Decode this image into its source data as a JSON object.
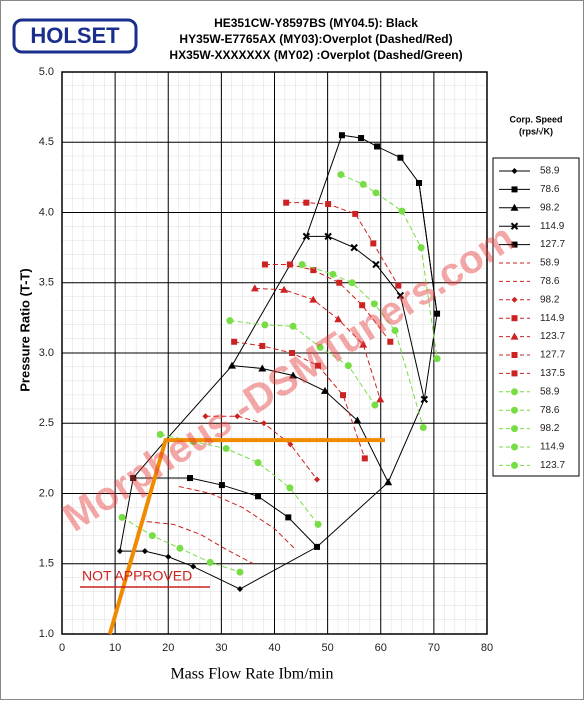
{
  "logo": "HOLSET",
  "chart_data": {
    "type": "line",
    "title": [
      "HE351CW-Y8597BS (MY04.5): Black",
      "HY35W-E7765AX (MY03):Overplot (Dashed/Red)",
      "HX35W-XXXXXXX (MY02) :Overplot (Dashed/Green)"
    ],
    "x_label": "Mass Flow Rate Ibm/min",
    "y_label": "Pressure Ratio (T-T)",
    "legend_title": [
      "Corp. Speed",
      "(rps/√K)"
    ],
    "annotations": [
      "NOT APPROVED"
    ],
    "watermark": "Morpheus -DSMTuners.com",
    "xlim": [
      0,
      80
    ],
    "xticks": [
      0,
      10,
      20,
      30,
      40,
      50,
      60,
      70,
      80
    ],
    "ylim": [
      1,
      5
    ],
    "yticks": [
      {
        "value": 1,
        "label": "1.0"
      },
      {
        "value": 1.5,
        "label": "1.5"
      },
      {
        "value": 2,
        "label": "2.0"
      },
      {
        "value": 2.5,
        "label": "2.5"
      },
      {
        "value": 3,
        "label": "3.0"
      },
      {
        "value": 3.5,
        "label": "3.5"
      },
      {
        "value": 4,
        "label": "4.0"
      },
      {
        "value": 4.5,
        "label": "4.5"
      },
      {
        "value": 5,
        "label": "5.0"
      }
    ],
    "grid": true,
    "series": [
      {
        "name": "58.9",
        "color": "#000000",
        "dash": false,
        "marker": "diamond",
        "x": [
          10.9,
          15.6,
          20,
          24.7,
          33.5
        ],
        "values": [
          1.59,
          1.59,
          1.55,
          1.48,
          1.32
        ]
      },
      {
        "name": "78.6",
        "color": "#000000",
        "dash": false,
        "marker": "square",
        "x": [
          13.4,
          24.1,
          30.1,
          36.9,
          42.6,
          48
        ],
        "values": [
          2.11,
          2.11,
          2.06,
          1.98,
          1.83,
          1.62
        ]
      },
      {
        "name": "98.2",
        "color": "#000000",
        "dash": false,
        "marker": "triangle",
        "x": [
          32,
          37.7,
          43.5,
          49.5,
          55.6,
          61.4
        ],
        "values": [
          2.91,
          2.89,
          2.84,
          2.73,
          2.52,
          2.08
        ]
      },
      {
        "name": "114.9",
        "color": "#000000",
        "dash": false,
        "marker": "x",
        "x": [
          46,
          50.1,
          55,
          59.1,
          63.7,
          68.2
        ],
        "values": [
          3.83,
          3.83,
          3.75,
          3.63,
          3.41,
          2.67
        ]
      },
      {
        "name": "127.7",
        "color": "#000000",
        "dash": false,
        "marker": "square",
        "x": [
          52.7,
          56.3,
          59.3,
          63.7,
          67.2,
          70.6
        ],
        "values": [
          4.55,
          4.53,
          4.47,
          4.39,
          4.21,
          3.28
        ]
      },
      {
        "color": "#000000",
        "dash": false,
        "marker": "none",
        "x": [
          10.9,
          13.4,
          20,
          32,
          46,
          52.7
        ],
        "values": [
          1.59,
          2.11,
          2.4,
          2.91,
          3.83,
          4.55
        ]
      },
      {
        "color": "#000000",
        "dash": false,
        "marker": "none",
        "x": [
          33.5,
          48,
          61.4,
          68.2,
          70.6,
          67.2
        ],
        "values": [
          1.32,
          1.62,
          2.08,
          2.67,
          3.28,
          4.21
        ]
      },
      {
        "name": "58.9",
        "color": "#cc2222",
        "dash": true,
        "marker": "none",
        "x": [
          16,
          21,
          26,
          31,
          36
        ],
        "values": [
          1.8,
          1.78,
          1.71,
          1.6,
          1.5
        ]
      },
      {
        "name": "78.6",
        "color": "#cc2222",
        "dash": true,
        "marker": "none",
        "x": [
          22,
          28,
          34,
          40,
          44
        ],
        "values": [
          2.05,
          2,
          1.9,
          1.75,
          1.6
        ]
      },
      {
        "name": "98.2",
        "color": "#cc2222",
        "dash": true,
        "marker": "diamond",
        "x": [
          27,
          33,
          38,
          43,
          48
        ],
        "values": [
          2.55,
          2.55,
          2.5,
          2.35,
          2.1
        ]
      },
      {
        "name": "114.9",
        "color": "#cc2222",
        "dash": true,
        "marker": "square",
        "x": [
          32.4,
          37.7,
          43.3,
          48.2,
          52.9,
          57
        ],
        "values": [
          3.08,
          3.05,
          3,
          2.91,
          2.7,
          2.25
        ]
      },
      {
        "name": "123.7",
        "color": "#cc2222",
        "dash": true,
        "marker": "triangle",
        "x": [
          36.3,
          41.8,
          47.3,
          52,
          56.7,
          59.9
        ],
        "values": [
          3.46,
          3.45,
          3.38,
          3.24,
          3.06,
          2.67
        ]
      },
      {
        "name": "127.7",
        "color": "#cc2222",
        "dash": true,
        "marker": "square",
        "x": [
          38.2,
          42.9,
          47.3,
          52.2,
          56.5,
          61.8
        ],
        "values": [
          3.63,
          3.63,
          3.59,
          3.5,
          3.34,
          3.08
        ]
      },
      {
        "name": "137.5",
        "color": "#cc2222",
        "dash": true,
        "marker": "square",
        "x": [
          42.2,
          46,
          50.1,
          55.2,
          58.6,
          63.3
        ],
        "values": [
          4.07,
          4.07,
          4.06,
          3.99,
          3.78,
          3.48
        ]
      },
      {
        "name": "58.9",
        "color": "#77dd44",
        "dash": true,
        "marker": "circle",
        "x": [
          11.3,
          17,
          22.2,
          27.9,
          33.5
        ],
        "values": [
          1.83,
          1.7,
          1.61,
          1.51,
          1.44
        ]
      },
      {
        "name": "78.6",
        "color": "#77dd44",
        "dash": true,
        "marker": "circle",
        "x": [
          18.5,
          24.7,
          30.9,
          36.9,
          42.9,
          48.2
        ],
        "values": [
          2.42,
          2.37,
          2.32,
          2.22,
          2.04,
          1.78
        ]
      },
      {
        "name": "98.2",
        "color": "#77dd44",
        "dash": true,
        "marker": "circle",
        "x": [
          31.6,
          38.2,
          43.5,
          48.6,
          53.9,
          58.9
        ],
        "values": [
          3.23,
          3.2,
          3.19,
          3.04,
          2.91,
          2.63
        ]
      },
      {
        "name": "114.9",
        "color": "#77dd44",
        "dash": true,
        "marker": "circle",
        "x": [
          45.2,
          51,
          54.6,
          58.8,
          62.7,
          68
        ],
        "values": [
          3.63,
          3.56,
          3.5,
          3.35,
          3.16,
          2.47
        ]
      },
      {
        "name": "123.7",
        "color": "#77dd44",
        "dash": true,
        "marker": "circle",
        "x": [
          52.5,
          56.7,
          59.1,
          64,
          67.6,
          70.6
        ],
        "values": [
          4.27,
          4.2,
          4.14,
          4.01,
          3.75,
          2.96
        ]
      },
      {
        "color": "#f08a00",
        "dash": false,
        "marker": "none",
        "width": 4,
        "x": [
          9,
          19.5,
          60.8
        ],
        "values": [
          1,
          2.38,
          2.38
        ]
      }
    ]
  }
}
